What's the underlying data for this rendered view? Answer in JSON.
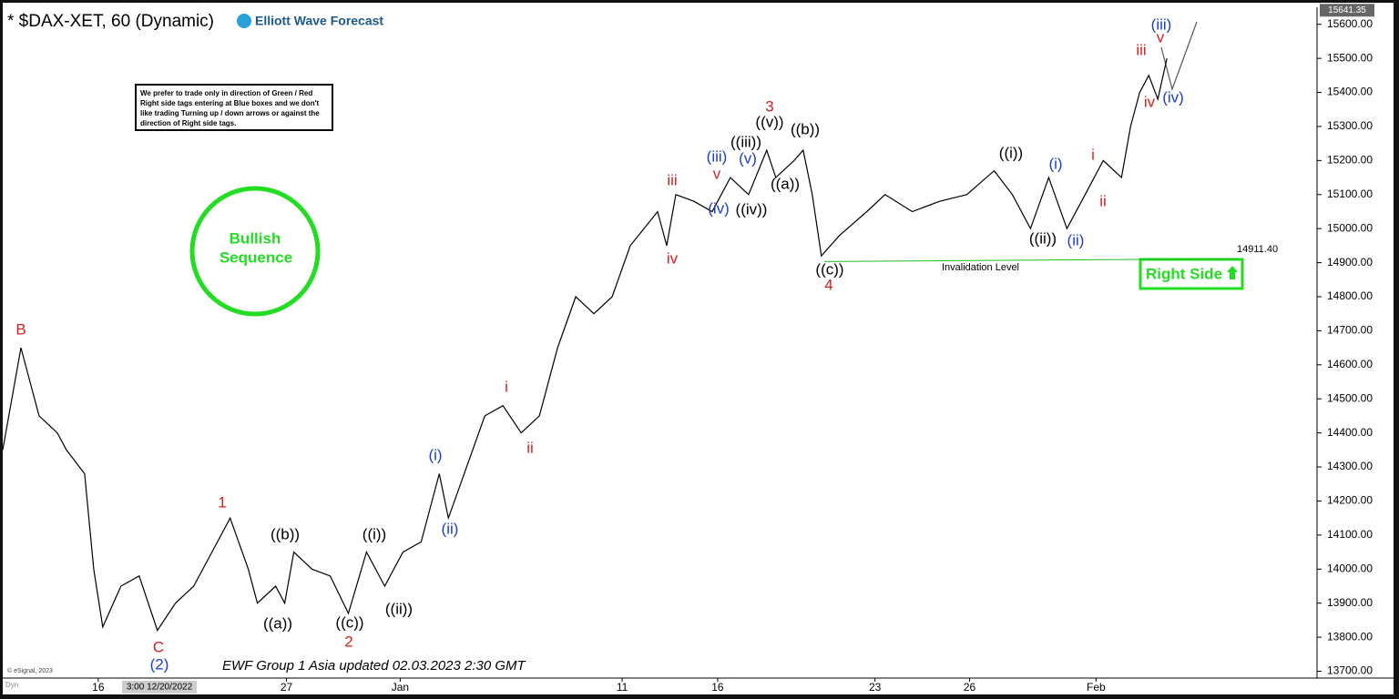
{
  "chart_data": {
    "type": "line",
    "title": "* $DAX-XET, 60 (Dynamic)",
    "logo": "Elliott Wave Forecast",
    "note": "We prefer to trade only in direction of Green / Red Right side tags entering at Blue boxes and we don't like trading Turning up / down arrows or against the direction of Right side tags.",
    "badge": [
      "Bullish",
      "Sequence"
    ],
    "right_side": "Right Side",
    "footer": "EWF Group 1 Asia updated 02.03.2023 2:30 GMT",
    "copyright": "© eSignal, 2023",
    "cursor_date": "3:00 12/20/2022",
    "corner": "Dyn",
    "last_price": {
      "value": 15641.35,
      "label": "15641.35"
    },
    "invalidation": {
      "value": 14911.4,
      "label": "14911.40",
      "text": "Invalidation Level"
    },
    "series": [
      {
        "color": "#000000",
        "x": [
          0,
          2,
          4,
          6,
          7,
          9,
          10,
          11,
          13,
          15,
          17,
          19,
          21,
          23,
          25,
          27,
          28,
          30,
          31,
          32,
          34,
          36,
          38,
          40,
          42,
          44,
          46,
          48,
          49,
          51,
          53,
          55,
          57,
          59,
          61,
          63,
          65,
          67,
          69,
          72,
          73,
          74,
          76,
          78,
          80,
          82,
          84,
          85,
          87,
          88,
          89,
          90,
          92,
          95,
          97,
          100,
          103,
          106,
          109,
          111,
          113,
          115,
          117,
          119,
          121,
          123,
          124,
          125,
          126,
          127,
          128
        ],
        "values": [
          14350,
          14650,
          14450,
          14400,
          14350,
          14280,
          14000,
          13830,
          13950,
          13980,
          13820,
          13900,
          13950,
          14050,
          14150,
          14000,
          13900,
          13950,
          13900,
          14050,
          14000,
          13980,
          13870,
          14050,
          13950,
          14050,
          14080,
          14280,
          14150,
          14300,
          14450,
          14480,
          14400,
          14450,
          14650,
          14800,
          14750,
          14800,
          14950,
          15050,
          14950,
          15100,
          15080,
          15050,
          15150,
          15100,
          15230,
          15150,
          15200,
          15230,
          15100,
          14920,
          14980,
          15050,
          15100,
          15050,
          15080,
          15100,
          15170,
          15100,
          15000,
          15150,
          15000,
          15100,
          15200,
          15150,
          15300,
          15400,
          15450,
          15380,
          15500
        ]
      }
    ],
    "xlim": [
      0,
      144.5
    ],
    "xticks": [
      {
        "value": 10.5,
        "label": "16"
      },
      {
        "value": 31.2,
        "label": "27"
      },
      {
        "value": 43.7,
        "label": "Jan"
      },
      {
        "value": 68.1,
        "label": "11"
      },
      {
        "value": 78.6,
        "label": "16"
      },
      {
        "value": 95.9,
        "label": "23"
      },
      {
        "value": 106.3,
        "label": "26"
      },
      {
        "value": 120.2,
        "label": "Feb"
      }
    ],
    "ylim": [
      13680,
      15650
    ],
    "yticks": [
      {
        "value": 13700,
        "label": "13700.00"
      },
      {
        "value": 13800,
        "label": "13800.00"
      },
      {
        "value": 13900,
        "label": "13900.00"
      },
      {
        "value": 14000,
        "label": "14000.00"
      },
      {
        "value": 14100,
        "label": "14100.00"
      },
      {
        "value": 14200,
        "label": "14200.00"
      },
      {
        "value": 14300,
        "label": "14300.00"
      },
      {
        "value": 14400,
        "label": "14400.00"
      },
      {
        "value": 14500,
        "label": "14500.00"
      },
      {
        "value": 14600,
        "label": "14600.00"
      },
      {
        "value": 14700,
        "label": "14700.00"
      },
      {
        "value": 14800,
        "label": "14800.00"
      },
      {
        "value": 14900,
        "label": "14900.00"
      },
      {
        "value": 15000,
        "label": "15000.00"
      },
      {
        "value": 15100,
        "label": "15100.00"
      },
      {
        "value": 15200,
        "label": "15200.00"
      },
      {
        "value": 15300,
        "label": "15300.00"
      },
      {
        "value": 15400,
        "label": "15400.00"
      },
      {
        "value": 15500,
        "label": "15500.00"
      },
      {
        "value": 15600,
        "label": "15600.00"
      }
    ],
    "annotations": [
      {
        "text": "B",
        "color": "#d62020"
      },
      {
        "text": "C",
        "color": "#d62020"
      },
      {
        "text": "(2)",
        "color": "#1a3fc4"
      },
      {
        "text": "1",
        "color": "#d62020"
      },
      {
        "text": "((b))",
        "color": "#000000"
      },
      {
        "text": "((a))",
        "color": "#000000"
      },
      {
        "text": "((c))",
        "color": "#000000"
      },
      {
        "text": "2",
        "color": "#d62020"
      },
      {
        "text": "((i))",
        "color": "#000000"
      },
      {
        "text": "((ii))",
        "color": "#000000"
      },
      {
        "text": "(i)",
        "color": "#1a3fc4"
      },
      {
        "text": "(ii)",
        "color": "#1a3fc4"
      },
      {
        "text": "i",
        "color": "#d62020"
      },
      {
        "text": "ii",
        "color": "#d62020"
      },
      {
        "text": "iii",
        "color": "#d62020"
      },
      {
        "text": "iv",
        "color": "#d62020"
      },
      {
        "text": "(iii)",
        "color": "#1a3fc4"
      },
      {
        "text": "v",
        "color": "#d62020"
      },
      {
        "text": "(iv)",
        "color": "#1a3fc4"
      },
      {
        "text": "(v)",
        "color": "#1a3fc4"
      },
      {
        "text": "((iii))",
        "color": "#000000"
      },
      {
        "text": "((iv))",
        "color": "#000000"
      },
      {
        "text": "((v))",
        "color": "#000000"
      },
      {
        "text": "3",
        "color": "#d62020"
      },
      {
        "text": "((b))",
        "color": "#000000"
      },
      {
        "text": "((a))",
        "color": "#000000"
      },
      {
        "text": "((c))",
        "color": "#000000"
      },
      {
        "text": "4",
        "color": "#d62020"
      },
      {
        "text": "((i))",
        "color": "#000000"
      },
      {
        "text": "(i)",
        "color": "#1a3fc4"
      },
      {
        "text": "i",
        "color": "#d62020"
      },
      {
        "text": "ii",
        "color": "#d62020"
      },
      {
        "text": "((ii))",
        "color": "#000000"
      },
      {
        "text": "(ii)",
        "color": "#1a3fc4"
      },
      {
        "text": "iii",
        "color": "#d62020"
      },
      {
        "text": "v",
        "color": "#d62020"
      },
      {
        "text": "(iii)",
        "color": "#1a3fc4"
      },
      {
        "text": "iv",
        "color": "#d62020"
      },
      {
        "text": "(iv)",
        "color": "#1a3fc4"
      }
    ]
  }
}
